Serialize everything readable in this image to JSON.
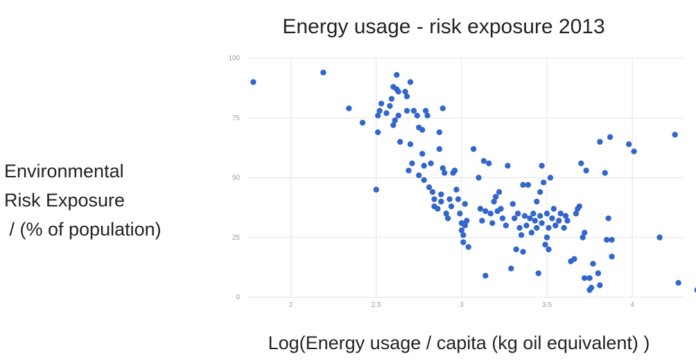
{
  "chart_data": {
    "type": "scatter",
    "title": "Energy usage - risk exposure 2013",
    "ylabel_lines": [
      "Environmental",
      "Risk Exposure",
      " / (% of population)"
    ],
    "xlabel": "Log(Energy usage / capita (kg oil equivalent) )",
    "xlim": [
      1.75,
      4.3
    ],
    "ylim": [
      0,
      100
    ],
    "xticks": [
      2,
      2.5,
      3,
      3.5,
      4
    ],
    "xtick_labels": [
      "2",
      "2.5",
      "3",
      "3.5",
      "4"
    ],
    "yticks": [
      0,
      25,
      50,
      75,
      100
    ],
    "ytick_labels": [
      "0",
      "25",
      "50",
      "75",
      "100"
    ],
    "grid": true,
    "series": [
      {
        "color": "#3366cc",
        "points": [
          [
            1.78,
            90
          ],
          [
            2.19,
            94
          ],
          [
            2.34,
            79
          ],
          [
            2.42,
            73
          ],
          [
            2.5,
            45
          ],
          [
            2.51,
            69
          ],
          [
            2.51,
            76
          ],
          [
            2.52,
            78
          ],
          [
            2.53,
            81
          ],
          [
            2.56,
            77
          ],
          [
            2.58,
            80
          ],
          [
            2.59,
            83
          ],
          [
            2.6,
            88
          ],
          [
            2.6,
            72
          ],
          [
            2.61,
            74
          ],
          [
            2.62,
            87
          ],
          [
            2.62,
            93
          ],
          [
            2.63,
            86
          ],
          [
            2.63,
            76
          ],
          [
            2.64,
            65
          ],
          [
            2.67,
            86
          ],
          [
            2.68,
            84
          ],
          [
            2.69,
            53
          ],
          [
            2.68,
            78
          ],
          [
            2.7,
            90
          ],
          [
            2.7,
            64
          ],
          [
            2.71,
            56
          ],
          [
            2.72,
            78
          ],
          [
            2.74,
            76
          ],
          [
            2.75,
            71
          ],
          [
            2.75,
            51
          ],
          [
            2.77,
            70
          ],
          [
            2.77,
            60
          ],
          [
            2.78,
            55
          ],
          [
            2.78,
            49
          ],
          [
            2.79,
            78
          ],
          [
            2.8,
            76
          ],
          [
            2.81,
            46
          ],
          [
            2.82,
            56
          ],
          [
            2.83,
            44
          ],
          [
            2.84,
            41
          ],
          [
            2.84,
            38
          ],
          [
            2.86,
            37
          ],
          [
            2.87,
            62
          ],
          [
            2.87,
            69
          ],
          [
            2.88,
            43
          ],
          [
            2.88,
            40
          ],
          [
            2.89,
            79
          ],
          [
            2.89,
            54
          ],
          [
            2.9,
            52
          ],
          [
            2.91,
            35
          ],
          [
            2.92,
            33
          ],
          [
            2.93,
            41
          ],
          [
            2.94,
            38
          ],
          [
            2.95,
            52
          ],
          [
            2.96,
            53
          ],
          [
            2.97,
            45
          ],
          [
            2.98,
            41
          ],
          [
            2.99,
            35
          ],
          [
            3.0,
            31
          ],
          [
            3.0,
            28
          ],
          [
            3.01,
            26
          ],
          [
            3.01,
            23
          ],
          [
            3.02,
            39
          ],
          [
            3.02,
            30
          ],
          [
            3.03,
            32
          ],
          [
            3.04,
            21
          ],
          [
            3.07,
            62
          ],
          [
            3.1,
            50
          ],
          [
            3.11,
            37
          ],
          [
            3.12,
            32
          ],
          [
            3.13,
            57
          ],
          [
            3.14,
            9
          ],
          [
            3.14,
            36
          ],
          [
            3.16,
            56
          ],
          [
            3.17,
            35
          ],
          [
            3.18,
            31
          ],
          [
            3.19,
            40
          ],
          [
            3.2,
            42
          ],
          [
            3.21,
            36
          ],
          [
            3.22,
            44
          ],
          [
            3.23,
            37
          ],
          [
            3.24,
            33
          ],
          [
            3.26,
            30
          ],
          [
            3.27,
            55
          ],
          [
            3.29,
            12
          ],
          [
            3.3,
            39
          ],
          [
            3.31,
            33
          ],
          [
            3.32,
            20
          ],
          [
            3.33,
            35
          ],
          [
            3.34,
            29
          ],
          [
            3.35,
            26
          ],
          [
            3.36,
            19
          ],
          [
            3.36,
            47
          ],
          [
            3.37,
            34
          ],
          [
            3.38,
            30
          ],
          [
            3.39,
            47
          ],
          [
            3.4,
            33
          ],
          [
            3.41,
            27
          ],
          [
            3.42,
            35
          ],
          [
            3.43,
            32
          ],
          [
            3.44,
            29
          ],
          [
            3.44,
            40
          ],
          [
            3.45,
            10
          ],
          [
            3.46,
            44
          ],
          [
            3.46,
            34
          ],
          [
            3.47,
            55
          ],
          [
            3.47,
            31
          ],
          [
            3.48,
            48
          ],
          [
            3.49,
            22
          ],
          [
            3.5,
            35
          ],
          [
            3.5,
            25
          ],
          [
            3.51,
            20
          ],
          [
            3.51,
            29
          ],
          [
            3.52,
            50
          ],
          [
            3.53,
            33
          ],
          [
            3.54,
            37
          ],
          [
            3.55,
            30
          ],
          [
            3.57,
            32
          ],
          [
            3.58,
            35
          ],
          [
            3.6,
            29
          ],
          [
            3.61,
            34
          ],
          [
            3.62,
            32
          ],
          [
            3.64,
            15
          ],
          [
            3.66,
            16
          ],
          [
            3.67,
            35
          ],
          [
            3.68,
            37
          ],
          [
            3.69,
            38
          ],
          [
            3.7,
            56
          ],
          [
            3.71,
            25
          ],
          [
            3.72,
            27
          ],
          [
            3.72,
            8
          ],
          [
            3.73,
            53
          ],
          [
            3.75,
            3
          ],
          [
            3.75,
            8
          ],
          [
            3.76,
            4
          ],
          [
            3.77,
            14
          ],
          [
            3.8,
            10
          ],
          [
            3.81,
            5
          ],
          [
            3.81,
            65
          ],
          [
            3.84,
            52
          ],
          [
            3.85,
            24
          ],
          [
            3.86,
            33
          ],
          [
            3.87,
            67
          ],
          [
            3.88,
            24
          ],
          [
            3.88,
            17
          ],
          [
            3.98,
            64
          ],
          [
            4.01,
            61
          ],
          [
            4.16,
            25
          ],
          [
            4.25,
            68
          ],
          [
            4.27,
            6
          ],
          [
            4.38,
            3
          ]
        ]
      }
    ]
  }
}
